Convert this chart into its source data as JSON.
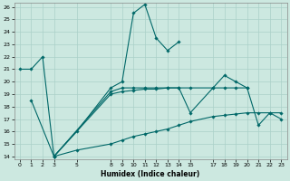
{
  "xlabel": "Humidex (Indice chaleur)",
  "background_color": "#cce8e0",
  "grid_color": "#aad0c8",
  "line_color": "#006868",
  "ylim": [
    14,
    26
  ],
  "yticks": [
    14,
    15,
    16,
    17,
    18,
    19,
    20,
    21,
    22,
    23,
    24,
    25,
    26
  ],
  "xlim": [
    -0.5,
    23.5
  ],
  "xtick_vals": [
    0,
    1,
    2,
    3,
    5,
    8,
    9,
    10,
    11,
    12,
    13,
    14,
    15,
    17,
    18,
    19,
    20,
    21,
    22,
    23
  ],
  "lines": [
    {
      "x": [
        0,
        1,
        2,
        3,
        5,
        8,
        9,
        10,
        11,
        12,
        13,
        14
      ],
      "y": [
        21.0,
        21.0,
        22.0,
        14.0,
        16.0,
        19.5,
        20.0,
        25.5,
        26.2,
        23.5,
        22.5,
        23.2
      ]
    },
    {
      "x": [
        3,
        8,
        9,
        10,
        11,
        12,
        13,
        14,
        15,
        17,
        18,
        19,
        20,
        21,
        22,
        23
      ],
      "y": [
        14.0,
        19.2,
        19.5,
        19.5,
        19.5,
        19.5,
        19.5,
        19.5,
        17.5,
        19.5,
        20.5,
        20.0,
        19.5,
        16.5,
        17.5,
        17.0
      ]
    },
    {
      "x": [
        1,
        3,
        8,
        9,
        10,
        11,
        12,
        13,
        14,
        15,
        17,
        18,
        19,
        20
      ],
      "y": [
        18.5,
        14.0,
        19.0,
        19.2,
        19.3,
        19.4,
        19.4,
        19.5,
        19.5,
        19.5,
        19.5,
        19.5,
        19.5,
        19.5
      ]
    },
    {
      "x": [
        3,
        5,
        8,
        9,
        10,
        11,
        12,
        13,
        14,
        15,
        17,
        18,
        19,
        20,
        21,
        22,
        23
      ],
      "y": [
        14.0,
        14.5,
        15.0,
        15.3,
        15.6,
        15.8,
        16.0,
        16.2,
        16.5,
        16.8,
        17.2,
        17.3,
        17.4,
        17.5,
        17.5,
        17.5,
        17.5
      ]
    }
  ]
}
